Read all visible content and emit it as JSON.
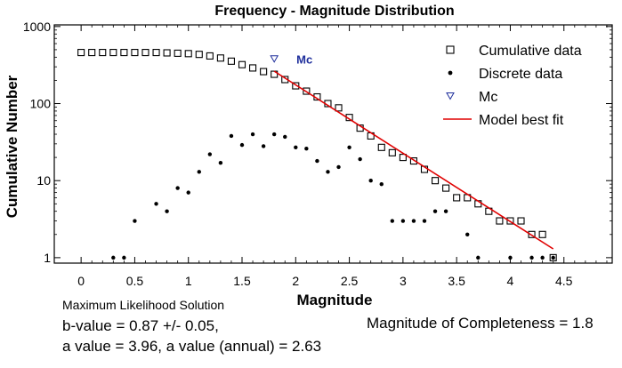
{
  "chart_data": {
    "type": "scatter",
    "title": "Frequency - Magnitude Distribution",
    "xlabel": "Magnitude",
    "ylabel": "Cumulative Number",
    "x_ticks": [
      "0",
      "0.5",
      "1",
      "1.5",
      "2",
      "2.5",
      "3",
      "3.5",
      "4",
      "4.5"
    ],
    "y_ticks": [
      "1",
      "10",
      "100",
      "1000"
    ],
    "xlim": [
      -0.25,
      4.95
    ],
    "ylim": [
      0.85,
      1050
    ],
    "y_scale": "log",
    "legend_position": "top-right",
    "series": [
      {
        "name": "Cumulative data",
        "marker": "open-square",
        "color": "#000000",
        "x": [
          0,
          0.1,
          0.2,
          0.3,
          0.4,
          0.5,
          0.6,
          0.7,
          0.8,
          0.9,
          1.0,
          1.1,
          1.2,
          1.3,
          1.4,
          1.5,
          1.6,
          1.7,
          1.8,
          1.9,
          2.0,
          2.1,
          2.2,
          2.3,
          2.4,
          2.5,
          2.6,
          2.7,
          2.8,
          2.9,
          3.0,
          3.1,
          3.2,
          3.3,
          3.4,
          3.5,
          3.6,
          3.7,
          3.8,
          3.9,
          4.0,
          4.1,
          4.2,
          4.3,
          4.4
        ],
        "y": [
          460,
          460,
          460,
          460,
          460,
          460,
          460,
          460,
          455,
          450,
          445,
          435,
          415,
          390,
          355,
          320,
          290,
          260,
          240,
          205,
          170,
          145,
          122,
          100,
          88,
          66,
          48,
          38,
          27,
          23,
          20,
          18,
          14,
          10,
          8,
          6,
          6,
          5,
          4,
          3,
          3,
          3,
          2,
          2,
          1
        ]
      },
      {
        "name": "Discrete data",
        "marker": "filled-dot",
        "color": "#000000",
        "x": [
          0.3,
          0.4,
          0.5,
          0.7,
          0.8,
          0.9,
          1.0,
          1.1,
          1.2,
          1.3,
          1.4,
          1.5,
          1.6,
          1.7,
          1.8,
          1.9,
          2.0,
          2.1,
          2.2,
          2.3,
          2.4,
          2.5,
          2.6,
          2.7,
          2.8,
          2.9,
          3.0,
          3.1,
          3.2,
          3.3,
          3.4,
          3.6,
          3.7,
          4.0,
          4.2,
          4.3,
          4.4
        ],
        "y": [
          1,
          1,
          3,
          5,
          4,
          8,
          7,
          13,
          22,
          17,
          38,
          29,
          40,
          28,
          40,
          37,
          27,
          26,
          18,
          13,
          15,
          27,
          19,
          10,
          9,
          3,
          3,
          3,
          3,
          4,
          4,
          2,
          1,
          1,
          1,
          1,
          1
        ]
      },
      {
        "name": "Mc",
        "marker": "open-triangle-down",
        "color": "#1f2f9c",
        "label": "Mc",
        "x": [
          1.8
        ],
        "y": [
          380
        ]
      },
      {
        "name": "Model best fit",
        "marker": "line",
        "color": "#e00000",
        "x": [
          1.8,
          4.4
        ],
        "y": [
          263,
          1.3
        ]
      }
    ]
  },
  "info": {
    "method": "Maximum Likelihood Solution",
    "b_value": "b-value = 0.87 +/- 0.05,",
    "a_value": "a value = 3.96,  a value (annual) = 2.63",
    "completeness": "Magnitude of Completeness = 1.8"
  }
}
